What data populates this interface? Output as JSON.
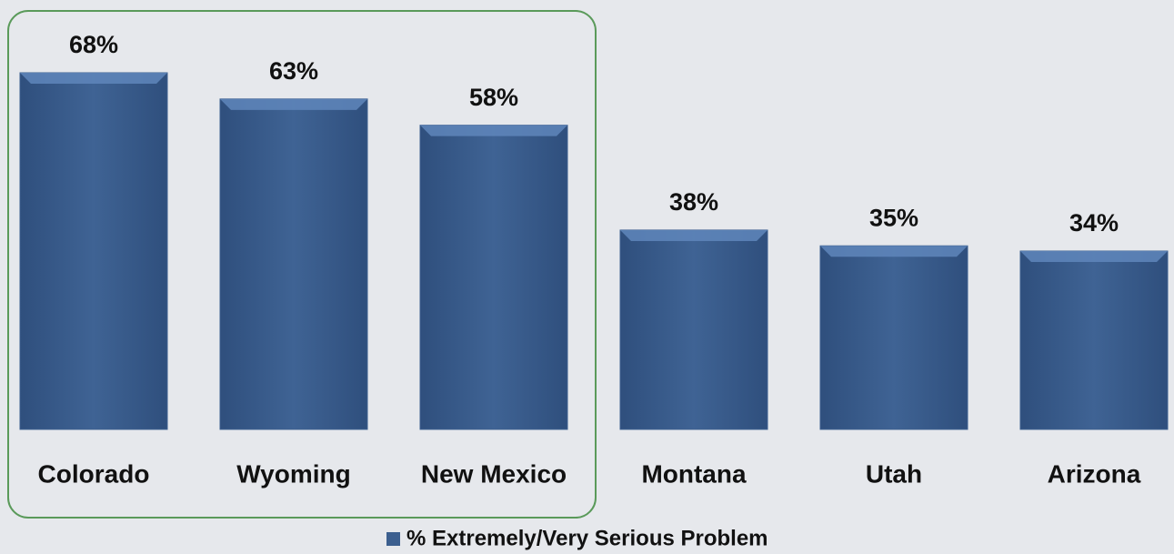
{
  "chart_data": {
    "type": "bar",
    "categories": [
      "Colorado",
      "Wyoming",
      "New Mexico",
      "Montana",
      "Utah",
      "Arizona"
    ],
    "series": [
      {
        "name": "% Extremely/Very Serious Problem",
        "color": "#3c5f8f",
        "values": [
          68,
          63,
          58,
          38,
          35,
          34
        ],
        "value_labels": [
          "68%",
          "63%",
          "58%",
          "38%",
          "35%",
          "34%"
        ]
      }
    ]
  }
}
